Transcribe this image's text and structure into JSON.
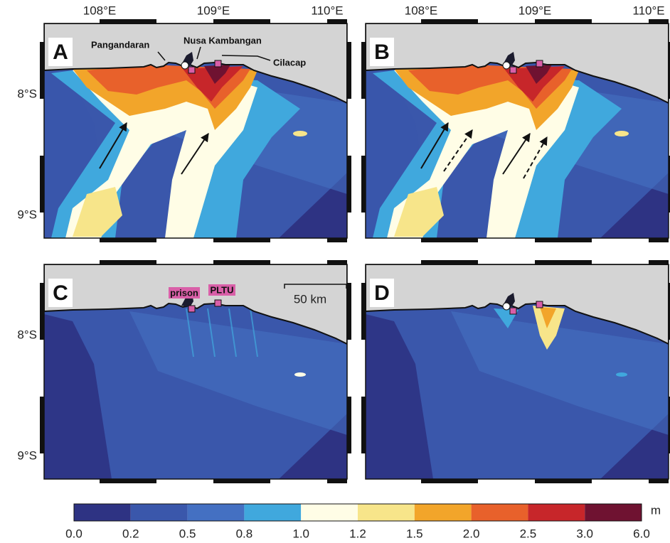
{
  "panels": [
    {
      "label": "A"
    },
    {
      "label": "B"
    },
    {
      "label": "C"
    },
    {
      "label": "D"
    }
  ],
  "x_axis_labels": [
    "108°E",
    "109°E",
    "110°E"
  ],
  "y_axis_labels": [
    "8°S",
    "9°S"
  ],
  "places": {
    "pangandaran": "Pangandaran",
    "nusa_kambangan": "Nusa Kambangan",
    "cilacap": "Cilacap",
    "prison": "prison",
    "pltu": "PLTU"
  },
  "scale_bar": "50 km",
  "colorbar": {
    "unit": "m",
    "ticks": [
      "0.0",
      "0.2",
      "0.5",
      "0.8",
      "1.0",
      "1.2",
      "1.5",
      "2.0",
      "2.5",
      "3.0",
      "6.0"
    ],
    "colors": [
      "#2e3383",
      "#3a57ab",
      "#4470c2",
      "#40a8dd",
      "#fffde6",
      "#f7e58a",
      "#f2a52a",
      "#e8612b",
      "#c7262a",
      "#6f1231"
    ]
  }
}
